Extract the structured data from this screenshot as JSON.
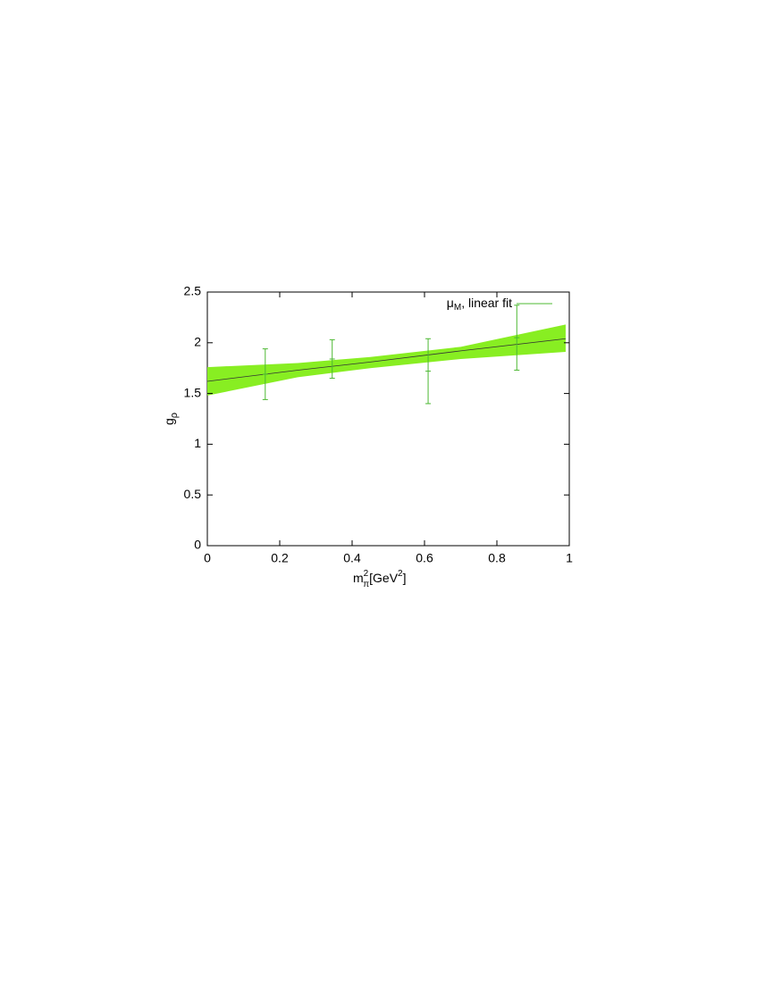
{
  "chart_data": {
    "type": "errorbar",
    "xlabel": {
      "base": "m",
      "sup": "2",
      "sub": "π",
      "unit": "[GeV",
      "unit_sup": "2",
      "close": "]"
    },
    "ylabel": {
      "base": "g",
      "sub": "ρ"
    },
    "legend": {
      "symbol": "μ",
      "subscript": "M",
      "text": ",  linear fit"
    },
    "xlim": [
      0,
      1
    ],
    "ylim": [
      0,
      2.5
    ],
    "xticks": [
      0,
      0.2,
      0.4,
      0.6,
      0.8,
      1
    ],
    "yticks": [
      0,
      0.5,
      1,
      1.5,
      2,
      2.5
    ],
    "x": [
      0.16,
      0.345,
      0.61,
      0.855
    ],
    "values": [
      1.69,
      1.84,
      1.72,
      2.05
    ],
    "errors": [
      0.25,
      0.19,
      0.32,
      0.32
    ],
    "color": "#4cb832",
    "fit": {
      "x": [
        0,
        0.25,
        0.45,
        0.7,
        0.99
      ],
      "values": [
        1.62,
        1.73,
        1.81,
        1.92,
        2.04
      ],
      "lower": [
        1.48,
        1.66,
        1.75,
        1.84,
        1.91
      ],
      "upper": [
        1.76,
        1.8,
        1.86,
        1.96,
        2.18
      ],
      "band_color": "#88ee22",
      "line_color": "#333333"
    }
  }
}
